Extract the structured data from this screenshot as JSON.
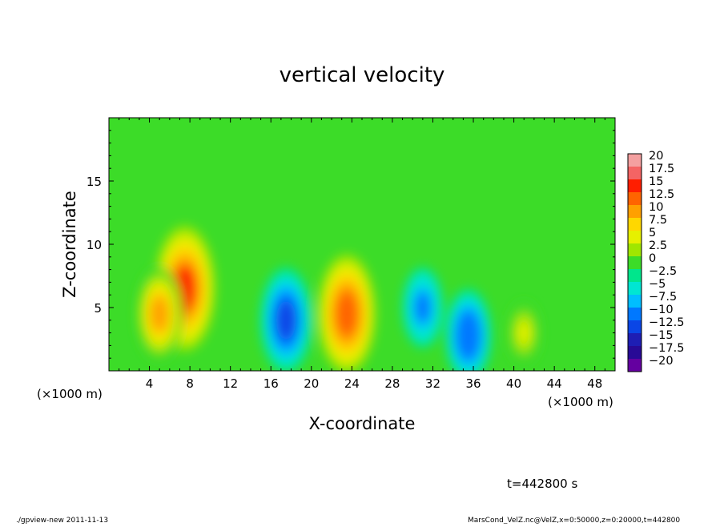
{
  "chart_data": {
    "type": "heatmap",
    "title": "vertical velocity",
    "xlabel": "X-coordinate",
    "ylabel": "Z-coordinate",
    "x_unit_left": "(×1000 m)",
    "x_unit_right": "(×1000 m)",
    "xlim": [
      0,
      50
    ],
    "ylim": [
      0,
      20
    ],
    "x_ticks": [
      4,
      8,
      12,
      16,
      20,
      24,
      28,
      32,
      36,
      40,
      44,
      48
    ],
    "y_ticks": [
      5,
      10,
      15
    ],
    "time_label": "t=442800 s",
    "colorbar": {
      "levels": [
        20,
        17.5,
        15,
        12.5,
        10,
        7.5,
        5,
        2.5,
        0,
        -2.5,
        -5,
        -7.5,
        -10,
        -12.5,
        -15,
        -17.5,
        -20
      ],
      "labels": [
        "20",
        "17.5",
        "15",
        "12.5",
        "10",
        "7.5",
        "5",
        "2.5",
        "0",
        "−2.5",
        "−5",
        "−7.5",
        "−10",
        "−12.5",
        "−15",
        "−17.5",
        "−20"
      ],
      "colors": [
        "#f4a0a0",
        "#f46464",
        "#ff1e00",
        "#ff6400",
        "#ffa000",
        "#ffd700",
        "#e6f000",
        "#a0e600",
        "#3cdc28",
        "#00e68c",
        "#00e6d2",
        "#00beff",
        "#0078ff",
        "#0a46e6",
        "#1e1eb4",
        "#280a96",
        "#6400a0"
      ]
    },
    "features": [
      {
        "kind": "updraft",
        "x": 7.5,
        "z": 6.5,
        "peak": 15
      },
      {
        "kind": "updraft",
        "x": 5.0,
        "z": 4.5,
        "peak": 10
      },
      {
        "kind": "updraft",
        "x": 23.5,
        "z": 4.5,
        "peak": 14
      },
      {
        "kind": "updraft",
        "x": 41.0,
        "z": 3.0,
        "peak": 5
      },
      {
        "kind": "downdraft",
        "x": 17.5,
        "z": 4.0,
        "peak": -12
      },
      {
        "kind": "downdraft",
        "x": 31.0,
        "z": 5.0,
        "peak": -8
      },
      {
        "kind": "downdraft",
        "x": 35.5,
        "z": 2.8,
        "peak": -10
      }
    ]
  },
  "footer": {
    "left": "./gpview-new   2011-11-13",
    "right": "MarsCond_VelZ.nc@VelZ,x=0:50000,z=0:20000,t=442800"
  }
}
